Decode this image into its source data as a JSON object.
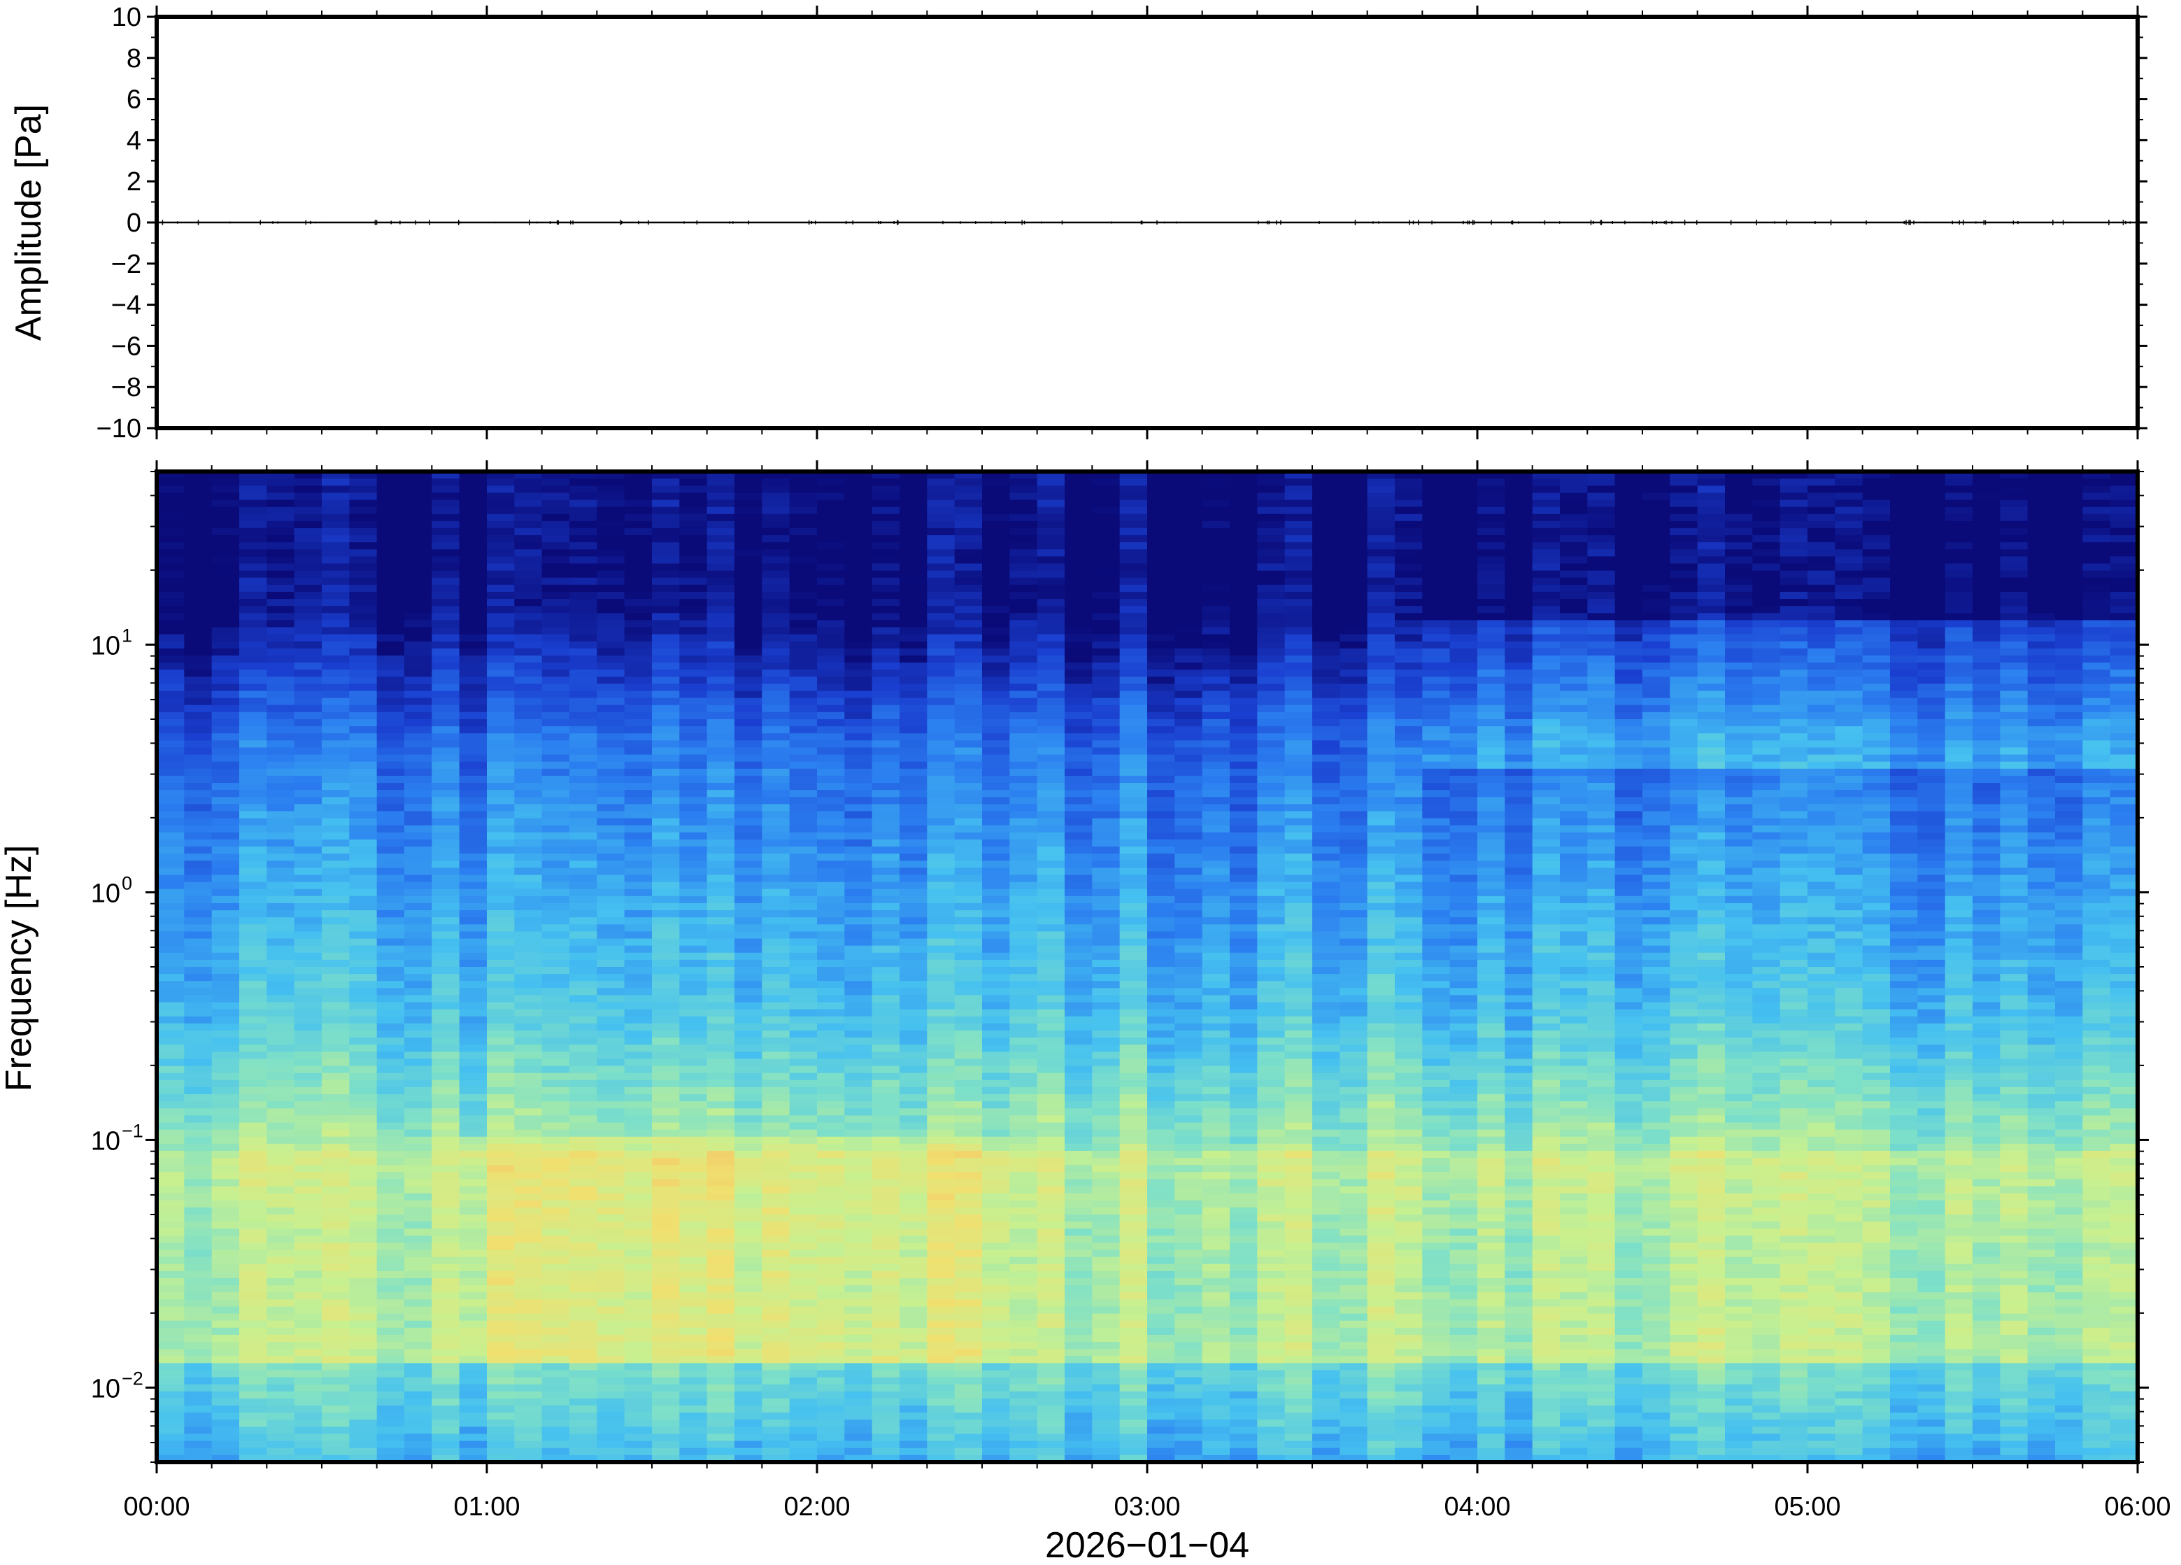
{
  "chart_data": [
    {
      "type": "line",
      "ylabel": "Amplitude [Pa]",
      "ylim": [
        -10,
        10
      ],
      "y_ticks": [
        "10",
        "8",
        "6",
        "4",
        "2",
        "0",
        "−2",
        "−4",
        "−6",
        "−8",
        "−10"
      ],
      "y_tick_values": [
        10,
        8,
        6,
        4,
        2,
        0,
        -2,
        -4,
        -6,
        -8,
        -10
      ],
      "series": [
        {
          "x": [
            "00:00",
            "01:00",
            "02:00",
            "03:00",
            "04:00",
            "05:00",
            "06:00"
          ],
          "values": [
            0,
            0,
            0,
            0,
            0,
            0,
            0
          ]
        }
      ],
      "grid": false
    },
    {
      "type": "heatmap",
      "ylabel": "Frequency [Hz]",
      "y_scale": "log",
      "ylim": [
        0.005,
        50
      ],
      "y_ticks": [
        {
          "base": "10",
          "exp": "1",
          "value": 10
        },
        {
          "base": "10",
          "exp": "0",
          "value": 1
        },
        {
          "base": "10",
          "exp": "−1",
          "value": 0.1
        },
        {
          "base": "10",
          "exp": "−2",
          "value": 0.01
        }
      ],
      "x_ticks": [
        "00:00",
        "01:00",
        "02:00",
        "03:00",
        "04:00",
        "05:00",
        "06:00"
      ],
      "xlabel": "2026−01−04",
      "xlim": [
        "00:00",
        "06:00"
      ],
      "colormap": [
        "#0a0a78",
        "#1a3fd0",
        "#2b7ef0",
        "#45c0f0",
        "#7ee0c8",
        "#c8f090",
        "#f0e070",
        "#f4b060"
      ],
      "grid": false
    }
  ]
}
